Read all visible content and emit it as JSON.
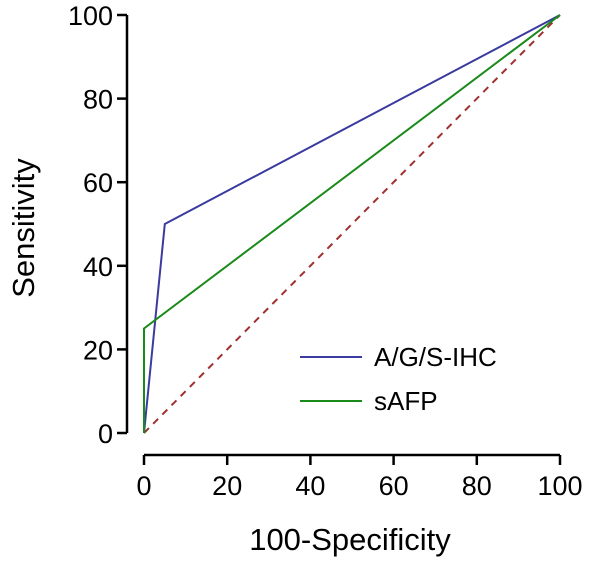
{
  "chart_data": {
    "type": "line",
    "title": "",
    "xlabel": "100-Specificity",
    "ylabel": "Sensitivity",
    "xlim": [
      0,
      100
    ],
    "ylim": [
      0,
      100
    ],
    "xticks": [
      "0",
      "20",
      "40",
      "60",
      "80",
      "100"
    ],
    "yticks": [
      "0",
      "20",
      "40",
      "60",
      "80",
      "100"
    ],
    "grid": false,
    "legend": "bottom-right",
    "series": [
      {
        "name": "A/G/S-IHC",
        "color": "#3a3aa0",
        "points": [
          [
            0,
            0
          ],
          [
            5,
            50
          ],
          [
            100,
            100
          ]
        ]
      },
      {
        "name": "sAFP",
        "color": "#1a8a1a",
        "points": [
          [
            0,
            0
          ],
          [
            0,
            25
          ],
          [
            100,
            100
          ]
        ]
      }
    ],
    "reference_line": {
      "color": "#a03030",
      "style": "dashed",
      "points": [
        [
          0,
          0
        ],
        [
          100,
          100
        ]
      ]
    }
  }
}
